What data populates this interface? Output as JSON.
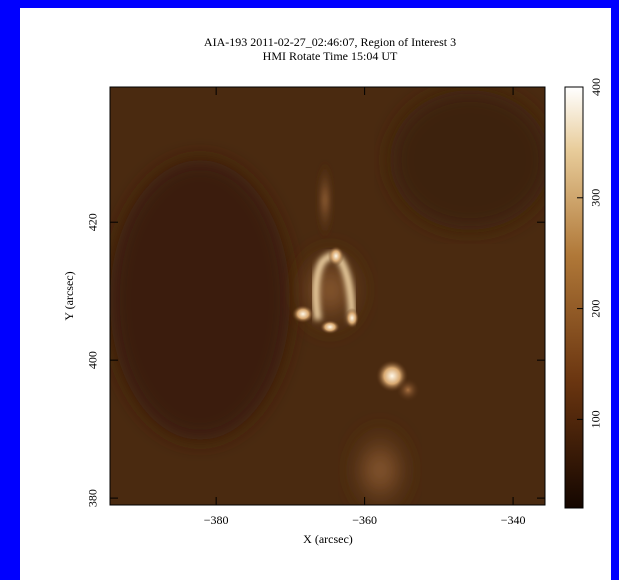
{
  "chart_data": {
    "type": "image",
    "title": "AIA-193 2011-02-27_02:46:07, Region of Interest 3",
    "subtitle": "HMI Rotate Time 15:04 UT",
    "x_label": "X (arcsec)",
    "y_label": "Y (arcsec)",
    "xlim": [
      -394.3,
      -335.7
    ],
    "xticks": [
      {
        "value": -380,
        "label": "−380"
      },
      {
        "value": -360,
        "label": "−360"
      },
      {
        "value": -340,
        "label": "−340"
      }
    ],
    "ylim": [
      379,
      439.6
    ],
    "yticks": [
      380,
      400,
      420
    ],
    "zlim": [
      20,
      400
    ],
    "zticks": [
      100,
      200,
      300,
      400
    ]
  }
}
